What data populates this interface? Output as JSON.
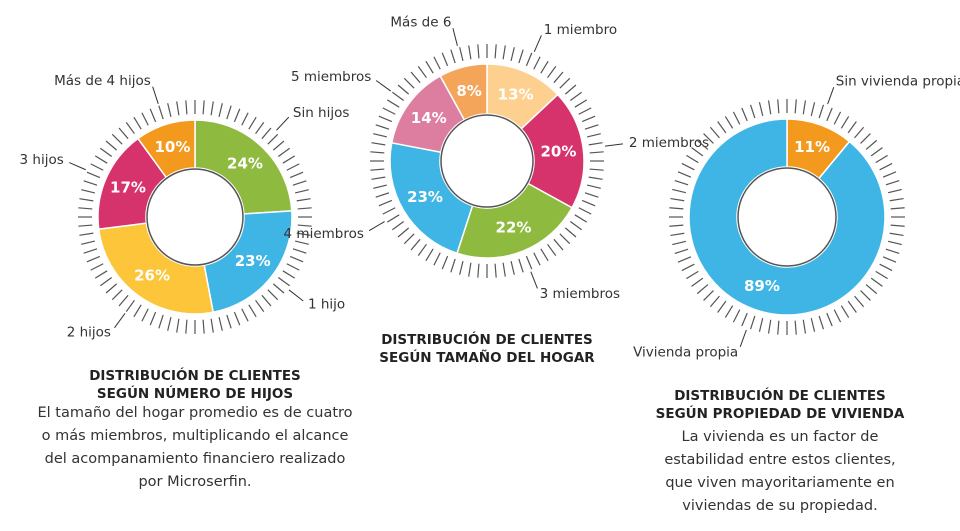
{
  "chart_data": [
    {
      "type": "pie",
      "title": "DISTRIBUCIÓN DE CLIENTES\nSEGÚN NÚMERO DE HIJOS",
      "description": "El tamaño del hogar promedio es de cuatro\no más miembros, multiplicando el alcance\ndel acompanamiento financiero realizado\npor Microserfin.",
      "categories": [
        "Sin hijos",
        "1 hijo",
        "2 hijos",
        "3 hijos",
        "Más de 4 hijos"
      ],
      "values": [
        24,
        23,
        26,
        17,
        10
      ],
      "value_labels": [
        "24%",
        "23%",
        "26%",
        "17%",
        "10%"
      ],
      "colors": [
        "#8dba3f",
        "#3fb5e5",
        "#fcc53a",
        "#d6336d",
        "#f39a1e"
      ]
    },
    {
      "type": "pie",
      "title": "DISTRIBUCIÓN DE CLIENTES\nSEGÚN TAMAÑO DEL HOGAR",
      "categories": [
        "1 miembro",
        "2 miembros",
        "3 miembros",
        "4 miembros",
        "5 miembros",
        "Más de 6"
      ],
      "values": [
        13,
        20,
        22,
        23,
        14,
        8
      ],
      "value_labels": [
        "13%",
        "20%",
        "22%",
        "23%",
        "14%",
        "8%"
      ],
      "colors": [
        "#fdd08f",
        "#d6336d",
        "#8dba3f",
        "#3fb5e5",
        "#dd7ea0",
        "#f4a55a"
      ]
    },
    {
      "type": "pie",
      "title": "DISTRIBUCIÓN DE CLIENTES\nSEGÚN PROPIEDAD DE VIVIENDA",
      "description": "La vivienda es un factor de\nestabilidad entre estos clientes,\nque viven mayoritariamente en\nviviendas de su propiedad.",
      "categories": [
        "Sin vivienda propia",
        "Vivienda propia"
      ],
      "values": [
        11,
        89
      ],
      "value_labels": [
        "11%",
        "89%"
      ],
      "colors": [
        "#f39a1e",
        "#3fb5e5"
      ]
    }
  ]
}
